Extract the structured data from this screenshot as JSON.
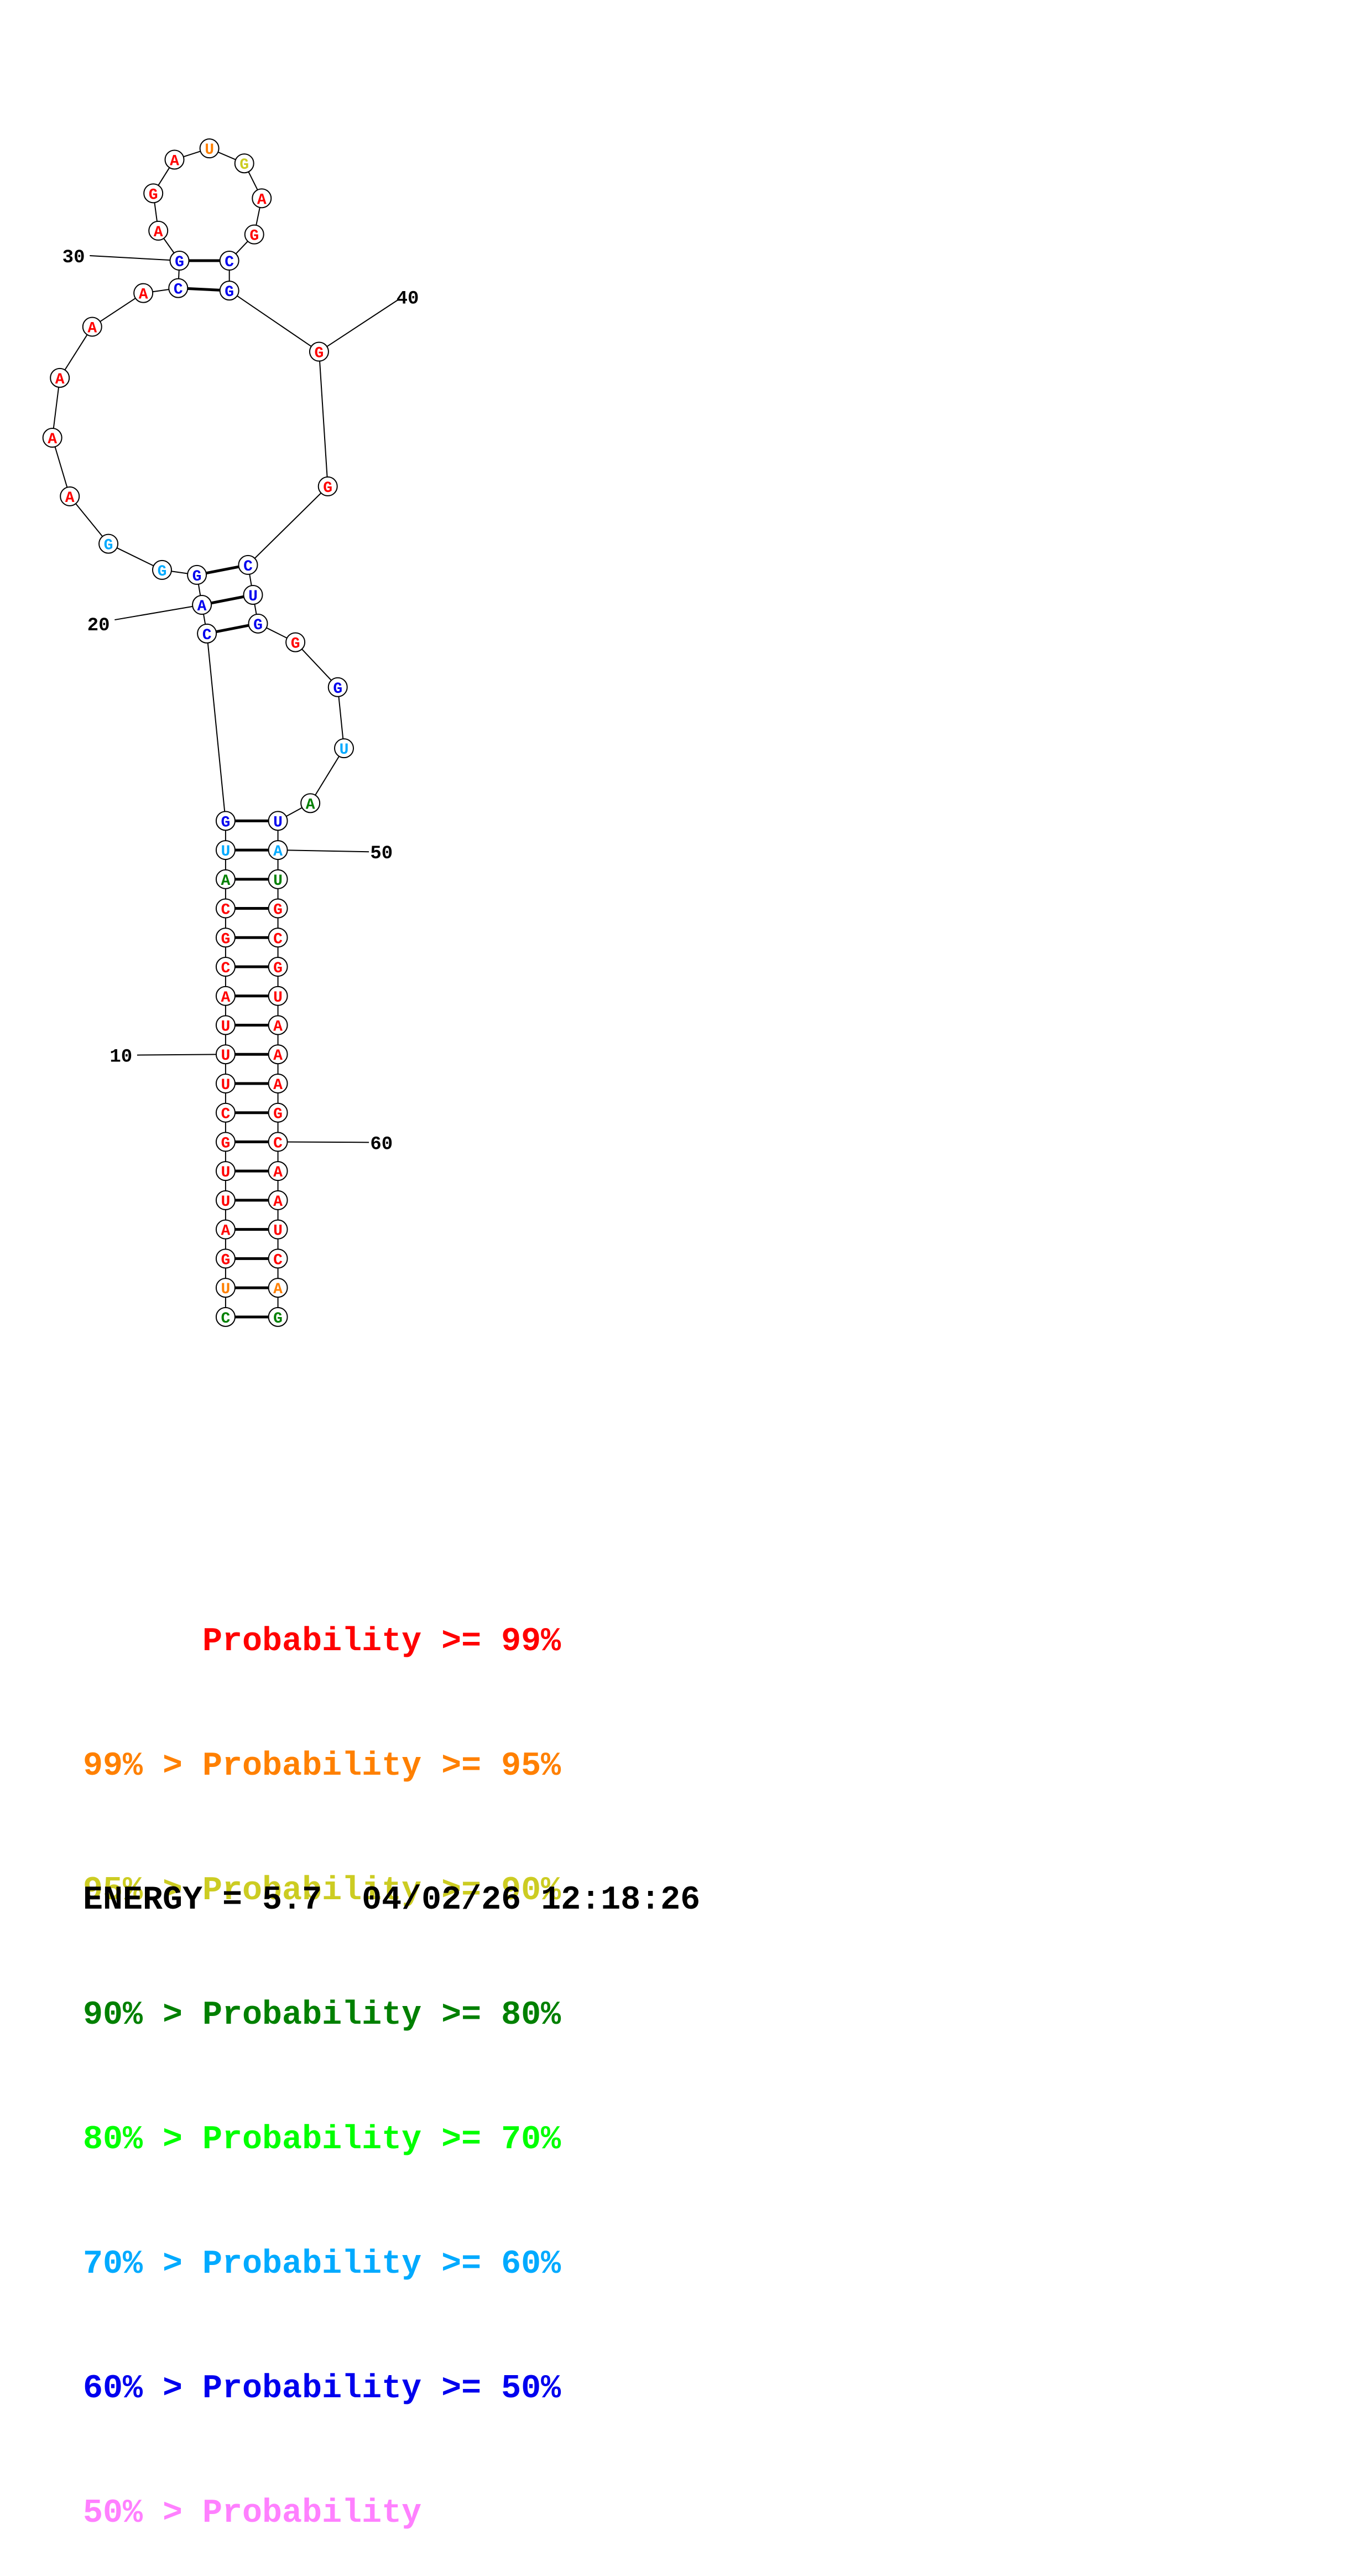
{
  "colors": {
    "p99": "#ff0000",
    "p95": "#ff8000",
    "p90": "#cccc22",
    "p80": "#008000",
    "p70": "#00ff00",
    "p60": "#00aaff",
    "p50": "#0000ee",
    "plow": "#ff80ff"
  },
  "nucleotides": [
    {
      "n": 1,
      "base": "C",
      "color": "p80"
    },
    {
      "n": 2,
      "base": "U",
      "color": "p95"
    },
    {
      "n": 3,
      "base": "G",
      "color": "p99"
    },
    {
      "n": 4,
      "base": "A",
      "color": "p99"
    },
    {
      "n": 5,
      "base": "U",
      "color": "p99"
    },
    {
      "n": 6,
      "base": "U",
      "color": "p99"
    },
    {
      "n": 7,
      "base": "G",
      "color": "p99"
    },
    {
      "n": 8,
      "base": "C",
      "color": "p99"
    },
    {
      "n": 9,
      "base": "U",
      "color": "p99"
    },
    {
      "n": 10,
      "base": "U",
      "color": "p99"
    },
    {
      "n": 11,
      "base": "U",
      "color": "p99"
    },
    {
      "n": 12,
      "base": "A",
      "color": "p99"
    },
    {
      "n": 13,
      "base": "C",
      "color": "p99"
    },
    {
      "n": 14,
      "base": "G",
      "color": "p99"
    },
    {
      "n": 15,
      "base": "C",
      "color": "p99"
    },
    {
      "n": 16,
      "base": "A",
      "color": "p80"
    },
    {
      "n": 17,
      "base": "U",
      "color": "p60"
    },
    {
      "n": 18,
      "base": "G",
      "color": "p50"
    },
    {
      "n": 19,
      "base": "C",
      "color": "p50"
    },
    {
      "n": 20,
      "base": "A",
      "color": "p50"
    },
    {
      "n": 21,
      "base": "G",
      "color": "p50"
    },
    {
      "n": 22,
      "base": "G",
      "color": "p60"
    },
    {
      "n": 23,
      "base": "G",
      "color": "p60"
    },
    {
      "n": 24,
      "base": "A",
      "color": "p99"
    },
    {
      "n": 25,
      "base": "A",
      "color": "p99"
    },
    {
      "n": 26,
      "base": "A",
      "color": "p99"
    },
    {
      "n": 27,
      "base": "A",
      "color": "p99"
    },
    {
      "n": 28,
      "base": "A",
      "color": "p99"
    },
    {
      "n": 29,
      "base": "C",
      "color": "p50"
    },
    {
      "n": 30,
      "base": "G",
      "color": "p50"
    },
    {
      "n": 31,
      "base": "A",
      "color": "p99"
    },
    {
      "n": 32,
      "base": "G",
      "color": "p99"
    },
    {
      "n": 33,
      "base": "A",
      "color": "p99"
    },
    {
      "n": 34,
      "base": "U",
      "color": "p95"
    },
    {
      "n": 35,
      "base": "G",
      "color": "p90"
    },
    {
      "n": 36,
      "base": "A",
      "color": "p99"
    },
    {
      "n": 37,
      "base": "G",
      "color": "p99"
    },
    {
      "n": 38,
      "base": "C",
      "color": "p50"
    },
    {
      "n": 39,
      "base": "G",
      "color": "p50"
    },
    {
      "n": 40,
      "base": "G",
      "color": "p99"
    },
    {
      "n": 41,
      "base": "G",
      "color": "p99"
    },
    {
      "n": 42,
      "base": "C",
      "color": "p50"
    },
    {
      "n": 43,
      "base": "U",
      "color": "p50"
    },
    {
      "n": 44,
      "base": "G",
      "color": "p50"
    },
    {
      "n": 45,
      "base": "G",
      "color": "p99"
    },
    {
      "n": 46,
      "base": "G",
      "color": "p50"
    },
    {
      "n": 47,
      "base": "U",
      "color": "p60"
    },
    {
      "n": 48,
      "base": "A",
      "color": "p80"
    },
    {
      "n": 49,
      "base": "U",
      "color": "p50"
    },
    {
      "n": 50,
      "base": "A",
      "color": "p60"
    },
    {
      "n": 51,
      "base": "U",
      "color": "p80"
    },
    {
      "n": 52,
      "base": "G",
      "color": "p99"
    },
    {
      "n": 53,
      "base": "C",
      "color": "p99"
    },
    {
      "n": 54,
      "base": "G",
      "color": "p99"
    },
    {
      "n": 55,
      "base": "U",
      "color": "p99"
    },
    {
      "n": 56,
      "base": "A",
      "color": "p99"
    },
    {
      "n": 57,
      "base": "A",
      "color": "p99"
    },
    {
      "n": 58,
      "base": "A",
      "color": "p99"
    },
    {
      "n": 59,
      "base": "G",
      "color": "p99"
    },
    {
      "n": 60,
      "base": "C",
      "color": "p99"
    },
    {
      "n": 61,
      "base": "A",
      "color": "p99"
    },
    {
      "n": 62,
      "base": "A",
      "color": "p99"
    },
    {
      "n": 63,
      "base": "U",
      "color": "p99"
    },
    {
      "n": 64,
      "base": "C",
      "color": "p99"
    },
    {
      "n": 65,
      "base": "A",
      "color": "p95"
    },
    {
      "n": 66,
      "base": "G",
      "color": "p80"
    }
  ],
  "pairs": [
    [
      1,
      66
    ],
    [
      2,
      65
    ],
    [
      3,
      64
    ],
    [
      4,
      63
    ],
    [
      5,
      62
    ],
    [
      6,
      61
    ],
    [
      7,
      60
    ],
    [
      8,
      59
    ],
    [
      9,
      58
    ],
    [
      10,
      57
    ],
    [
      11,
      56
    ],
    [
      12,
      55
    ],
    [
      13,
      54
    ],
    [
      14,
      53
    ],
    [
      15,
      52
    ],
    [
      16,
      51
    ],
    [
      17,
      50
    ],
    [
      18,
      49
    ],
    [
      19,
      44
    ],
    [
      20,
      43
    ],
    [
      21,
      42
    ],
    [
      29,
      39
    ],
    [
      30,
      38
    ]
  ],
  "position_labels": [
    {
      "n": 10,
      "text": "10"
    },
    {
      "n": 20,
      "text": "20"
    },
    {
      "n": 30,
      "text": "30"
    },
    {
      "n": 40,
      "text": "40"
    },
    {
      "n": 50,
      "text": "50"
    },
    {
      "n": 60,
      "text": "60"
    }
  ],
  "legend": [
    {
      "text": "      Probability >= 99%",
      "color": "p99"
    },
    {
      "text": "99% > Probability >= 95%",
      "color": "p95"
    },
    {
      "text": "95% > Probability >= 90%",
      "color": "p90"
    },
    {
      "text": "90% > Probability >= 80%",
      "color": "p80"
    },
    {
      "text": "80% > Probability >= 70%",
      "color": "p70"
    },
    {
      "text": "70% > Probability >= 60%",
      "color": "p60"
    },
    {
      "text": "60% > Probability >= 50%",
      "color": "p50"
    },
    {
      "text": "50% > Probability",
      "color": "plow"
    }
  ],
  "footer": {
    "energy": "ENERGY = 5.7  04/02/26 12:18:26"
  }
}
